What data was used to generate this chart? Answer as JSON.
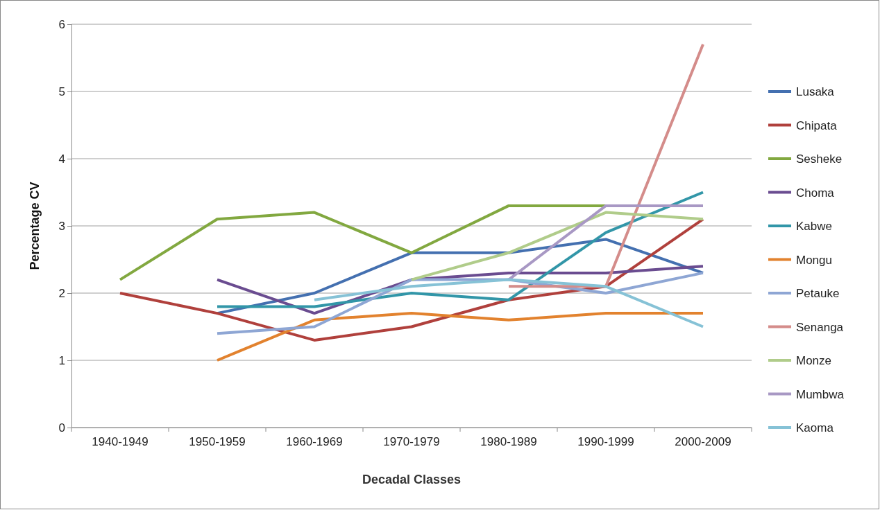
{
  "chart_data": {
    "type": "line",
    "xlabel": "Decadal Classes",
    "ylabel": "Percentage CV",
    "categories": [
      "1940-1949",
      "1950-1959",
      "1960-1969",
      "1970-1979",
      "1980-1989",
      "1990-1999",
      "2000-2009"
    ],
    "ylim": [
      0,
      6
    ],
    "yticks": [
      0,
      1,
      2,
      3,
      4,
      5,
      6
    ],
    "grid": "y",
    "legend": "right",
    "marker": "none",
    "line_style": "solid",
    "series": [
      {
        "name": "Lusaka",
        "color": "#4470b0",
        "values": [
          null,
          1.7,
          2.0,
          2.6,
          2.6,
          2.8,
          2.3
        ]
      },
      {
        "name": "Chipata",
        "color": "#b0403c",
        "values": [
          2.0,
          1.7,
          1.3,
          1.5,
          1.9,
          2.1,
          3.1
        ]
      },
      {
        "name": "Sesheke",
        "color": "#82a840",
        "values": [
          2.2,
          3.1,
          3.2,
          2.6,
          3.3,
          3.3,
          null
        ]
      },
      {
        "name": "Choma",
        "color": "#6a4c90",
        "values": [
          null,
          2.2,
          1.7,
          2.2,
          2.3,
          2.3,
          2.4
        ]
      },
      {
        "name": "Kabwe",
        "color": "#3296a8",
        "values": [
          null,
          1.8,
          1.8,
          2.0,
          1.9,
          2.9,
          3.5
        ]
      },
      {
        "name": "Mongu",
        "color": "#e2822e",
        "values": [
          null,
          1.0,
          1.6,
          1.7,
          1.6,
          1.7,
          1.7
        ]
      },
      {
        "name": "Petauke",
        "color": "#8ea6d4",
        "values": [
          null,
          1.4,
          1.5,
          2.2,
          2.2,
          2.0,
          2.3
        ]
      },
      {
        "name": "Senanga",
        "color": "#d48c8a",
        "values": [
          null,
          null,
          null,
          null,
          2.1,
          2.1,
          5.7
        ]
      },
      {
        "name": "Monze",
        "color": "#b0cc8a",
        "values": [
          null,
          null,
          null,
          2.2,
          2.6,
          3.2,
          3.1
        ]
      },
      {
        "name": "Mumbwa",
        "color": "#a898c4",
        "values": [
          null,
          null,
          null,
          null,
          2.2,
          3.3,
          3.3
        ]
      },
      {
        "name": "Kaoma",
        "color": "#86c2d6",
        "values": [
          null,
          null,
          1.9,
          2.1,
          2.2,
          2.1,
          1.5
        ]
      }
    ]
  }
}
